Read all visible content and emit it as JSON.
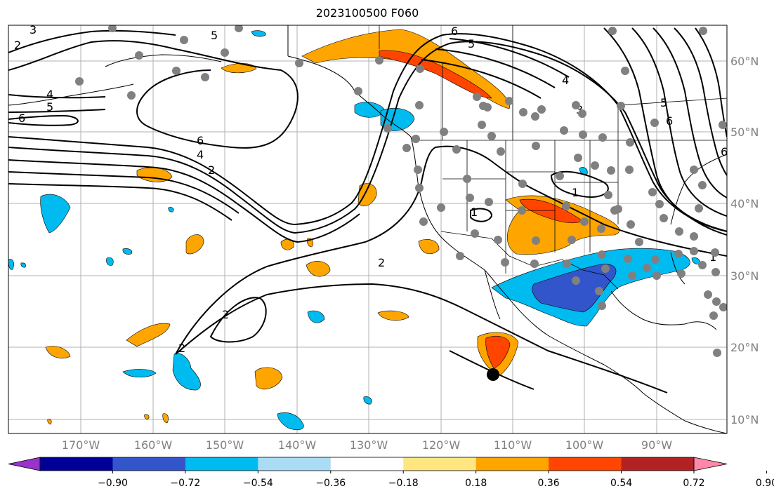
{
  "title": "2023100500 F060",
  "latitude_labels": [
    "60°N",
    "50°N",
    "40°N",
    "30°N",
    "20°N",
    "10°N"
  ],
  "longitude_labels": [
    "170°W",
    "160°W",
    "150°W",
    "140°W",
    "130°W",
    "120°W",
    "110°W",
    "100°W",
    "90°W"
  ],
  "colorbar": {
    "ticks": [
      "−0.90",
      "−0.72",
      "−0.54",
      "−0.36",
      "−0.18",
      "0.18",
      "0.36",
      "0.54",
      "0.72",
      "0.90"
    ],
    "colors": [
      "#9933cc",
      "#000099",
      "#3355cc",
      "#00bbf0",
      "#aaddf5",
      "#ffffff",
      "#ffe680",
      "#ffa500",
      "#ff4500",
      "#b22222",
      "#ff88aa"
    ]
  },
  "contour_labels": [
    "3",
    "2",
    "5",
    "4",
    "5",
    "6",
    "6",
    "4",
    "2",
    "6",
    "5",
    "4",
    "3",
    "5",
    "6",
    "1",
    "1",
    "2",
    "2",
    "2",
    "1",
    "6"
  ],
  "colors": {
    "negative_fill_light": "#00bbf0",
    "negative_fill_dark": "#3355cc",
    "positive_fill_light": "#ffa500",
    "positive_fill_dark": "#ff4500",
    "station_dot": "#808080",
    "hurricane_marker": "#000000"
  }
}
